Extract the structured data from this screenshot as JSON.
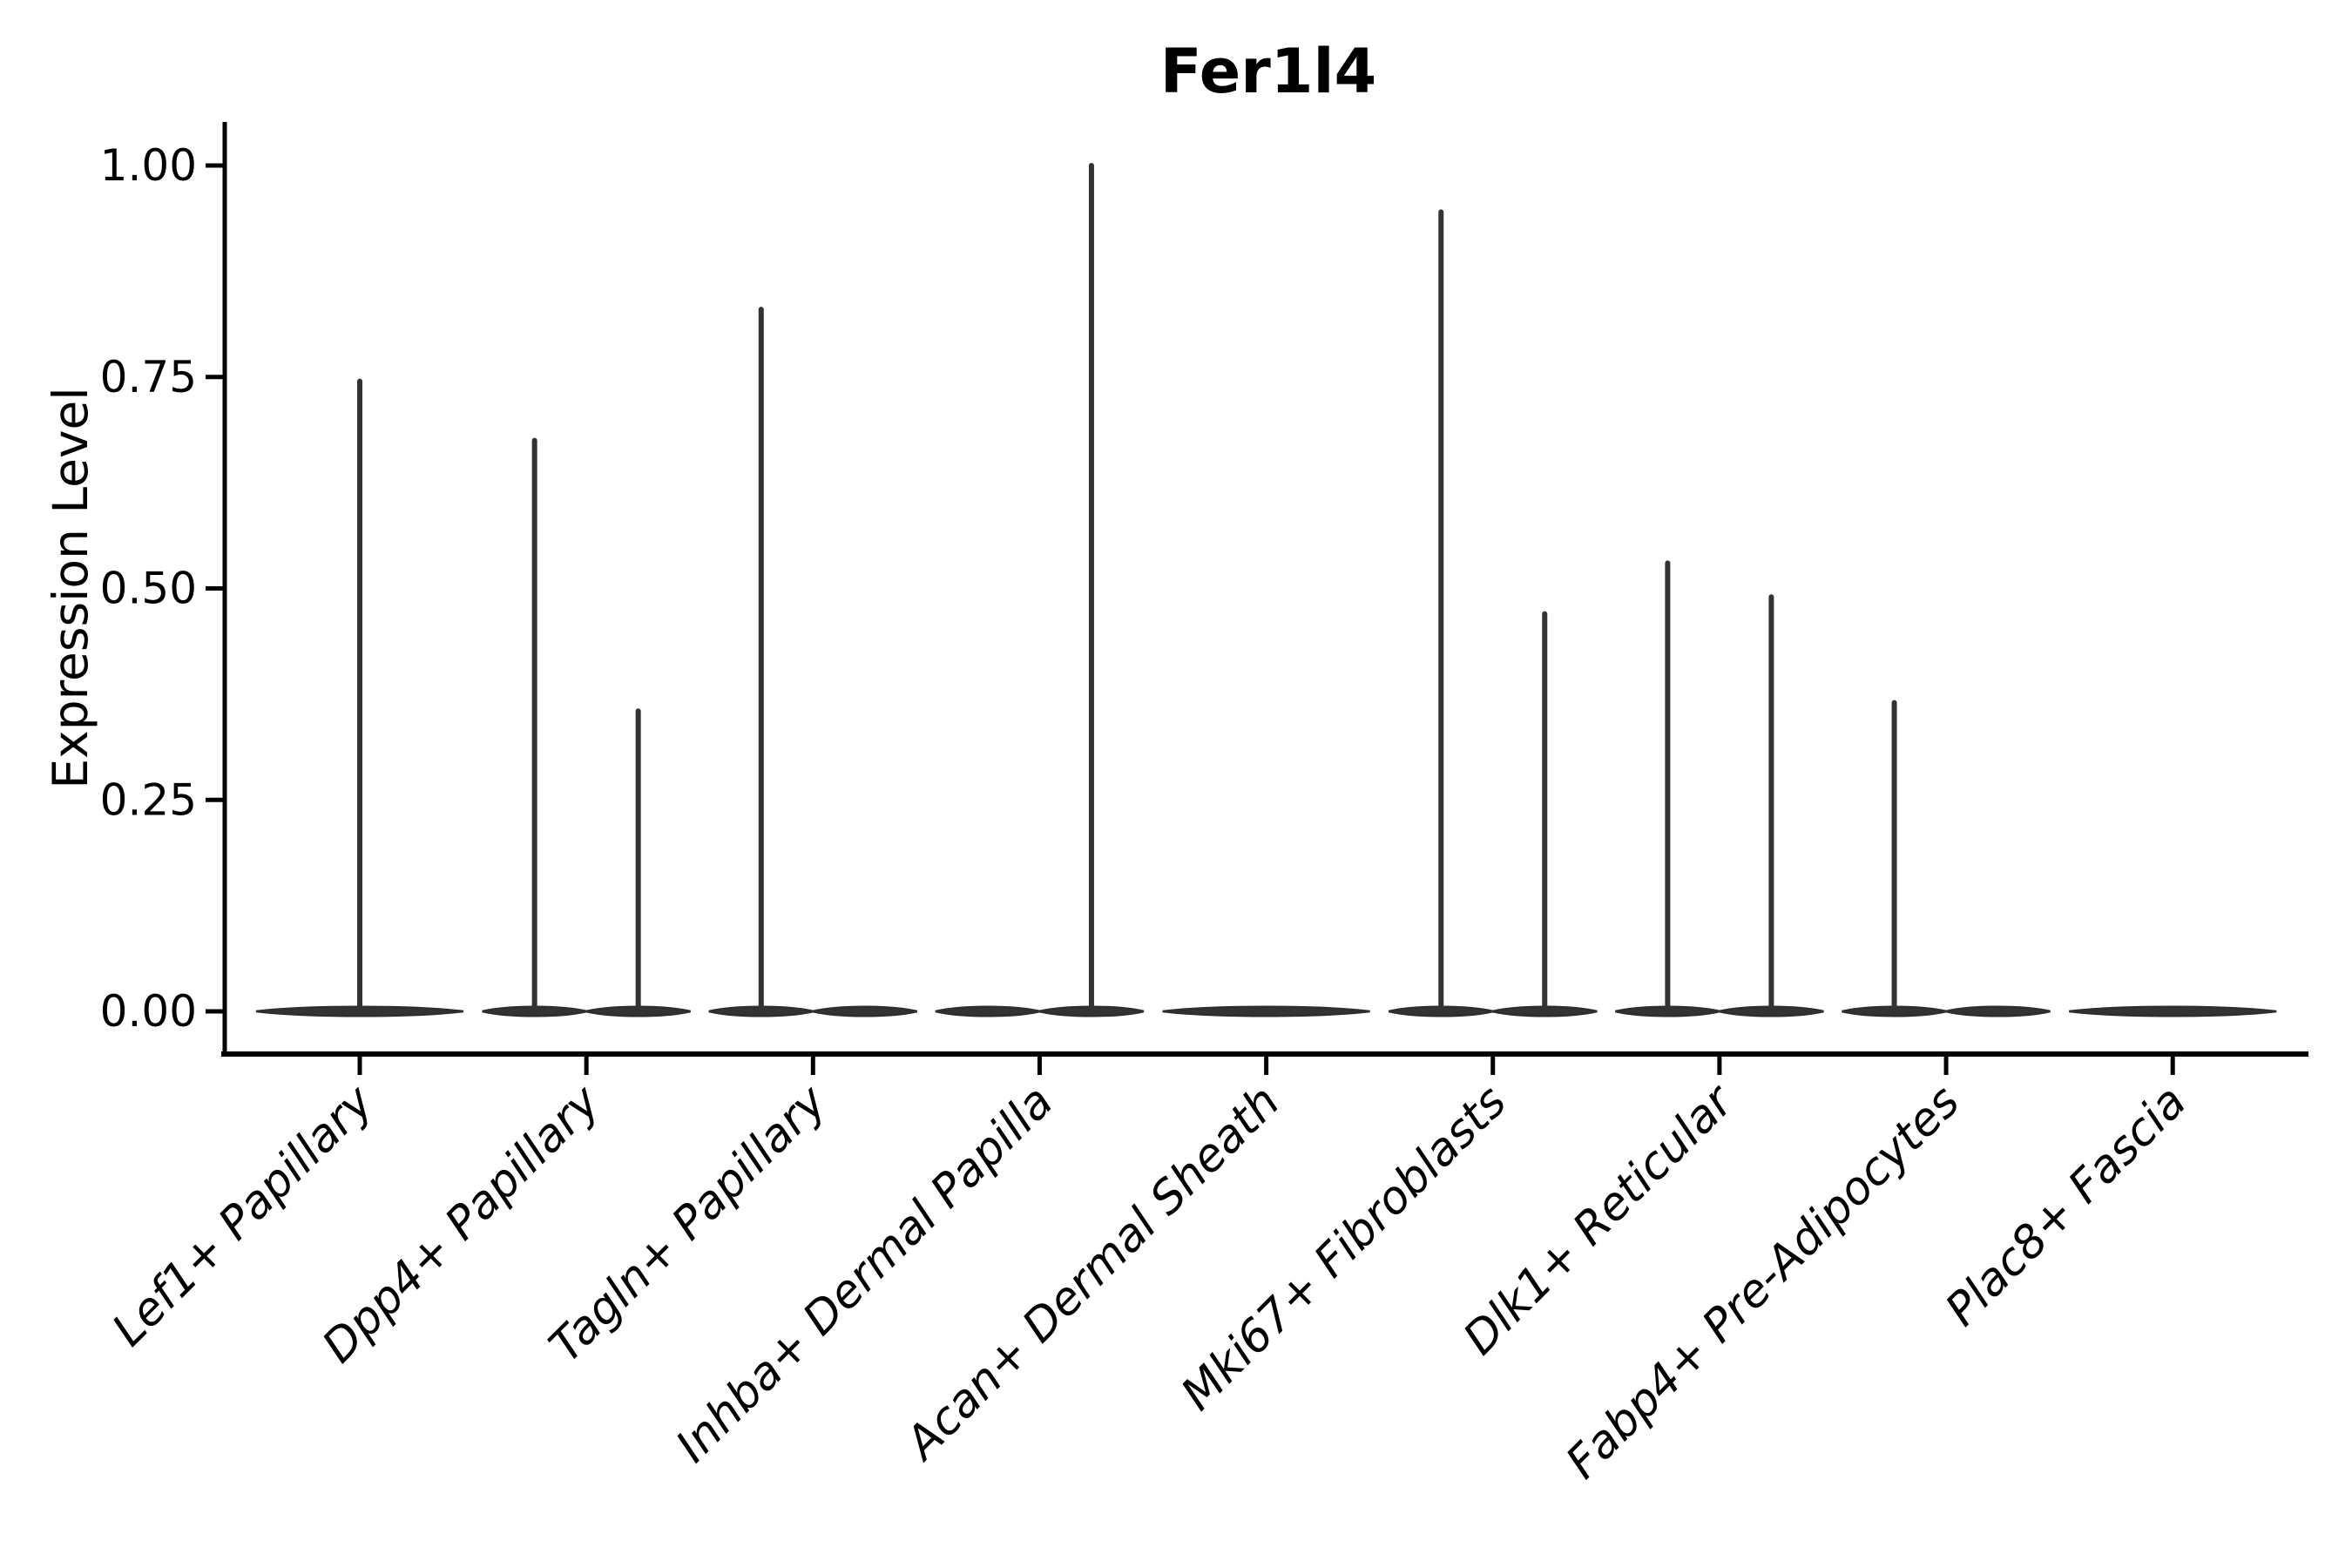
{
  "title": "Fer1l4",
  "chart_data": {
    "type": "violin",
    "title": "Fer1l4",
    "xlabel": "",
    "ylabel": "Expression Level",
    "ylim": [
      0,
      1.05
    ],
    "yticks": [
      1.0,
      0.75,
      0.5,
      0.25,
      0.0
    ],
    "ytick_labels": [
      "1.00",
      "0.75",
      "0.50",
      "0.25",
      "0.00"
    ],
    "grid": false,
    "legend": null,
    "baseline": 0.0,
    "categories": [
      "Lef1+ Papillary",
      "Dpp4+ Papillary",
      "Tagln+ Papillary",
      "Inhba+ Dermal Papilla",
      "Acan+ Dermal Sheath",
      "Mki67+ Fibroblasts",
      "Dlk1+ Reticular",
      "Fabp4+ Pre-Adipocytes",
      "Plac8+ Fascia"
    ],
    "violins": [
      {
        "category": "Lef1+ Papillary",
        "parts": [
          {
            "position": "center",
            "peak": 0.745
          }
        ]
      },
      {
        "category": "Dpp4+ Papillary",
        "parts": [
          {
            "position": "left",
            "peak": 0.675
          },
          {
            "position": "right",
            "peak": 0.355
          }
        ]
      },
      {
        "category": "Tagln+ Papillary",
        "parts": [
          {
            "position": "left",
            "peak": 0.83
          },
          {
            "position": "right",
            "peak": 0
          }
        ]
      },
      {
        "category": "Inhba+ Dermal Papilla",
        "parts": [
          {
            "position": "left",
            "peak": 0
          },
          {
            "position": "right",
            "peak": 1.0
          }
        ]
      },
      {
        "category": "Acan+ Dermal Sheath",
        "parts": [
          {
            "position": "center",
            "peak": 0
          }
        ]
      },
      {
        "category": "Mki67+ Fibroblasts",
        "parts": [
          {
            "position": "left",
            "peak": 0.945
          },
          {
            "position": "right",
            "peak": 0.47
          }
        ]
      },
      {
        "category": "Dlk1+ Reticular",
        "parts": [
          {
            "position": "left",
            "peak": 0.53
          },
          {
            "position": "right",
            "peak": 0.49
          }
        ]
      },
      {
        "category": "Fabp4+ Pre-Adipocytes",
        "parts": [
          {
            "position": "left",
            "peak": 0.365
          },
          {
            "position": "right",
            "peak": 0
          }
        ]
      },
      {
        "category": "Plac8+ Fascia",
        "parts": [
          {
            "position": "center",
            "peak": 0
          }
        ]
      }
    ],
    "colors": {
      "violin_fill": "#333333",
      "violin_stroke": "#2e2e2e",
      "spike": "#333333",
      "axis": "#000000",
      "text": "#000000",
      "background": "#ffffff"
    }
  }
}
